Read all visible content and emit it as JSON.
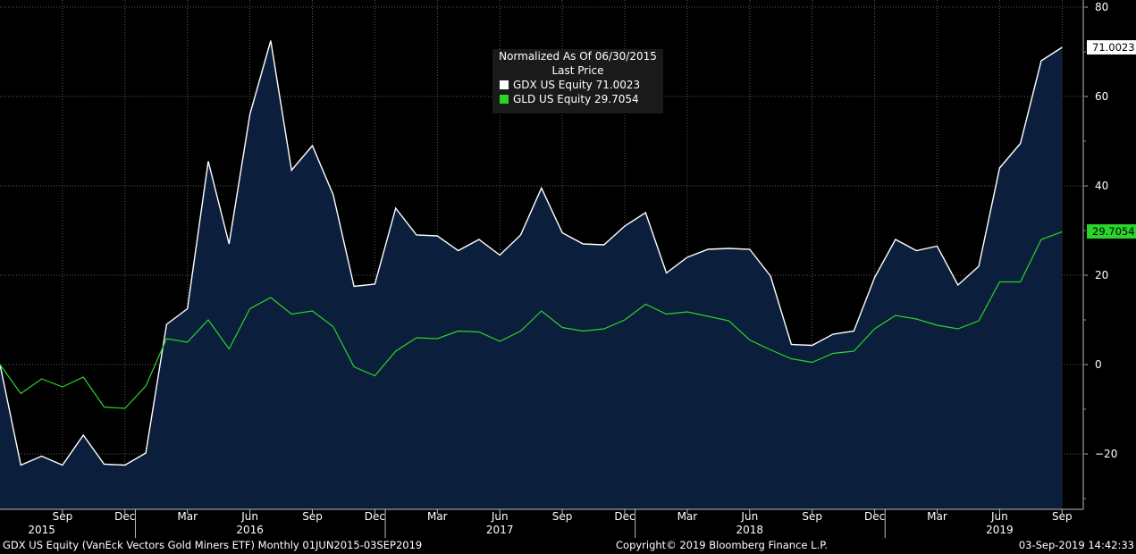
{
  "footer": {
    "left": "GDX US Equity (VanEck Vectors Gold Miners ETF)  Monthly 01JUN2015-03SEP2019",
    "center": "Copyright© 2019 Bloomberg Finance L.P.",
    "right": "03-Sep-2019 14:42:33"
  },
  "legend": {
    "title": "Normalized As Of 06/30/2015",
    "subtitle": "Last Price",
    "items": [
      {
        "label": "GDX US Equity",
        "value": "71.0023",
        "color": "#ffffff"
      },
      {
        "label": "GLD US Equity",
        "value": "29.7054",
        "color": "#2ad42a"
      }
    ]
  },
  "last_value_tags": [
    {
      "text": "71.0023",
      "color": "#ffffff"
    },
    {
      "text": "29.7054",
      "color": "#2ad42a"
    }
  ],
  "chart_data": {
    "type": "area",
    "ylim": [
      -32,
      80
    ],
    "yticks": [
      -20,
      0,
      20,
      40,
      60,
      80
    ],
    "grid": true,
    "x": [
      "2015-06",
      "2015-07",
      "2015-08",
      "2015-09",
      "2015-10",
      "2015-11",
      "2015-12",
      "2016-01",
      "2016-02",
      "2016-03",
      "2016-04",
      "2016-05",
      "2016-06",
      "2016-07",
      "2016-08",
      "2016-09",
      "2016-10",
      "2016-11",
      "2016-12",
      "2017-01",
      "2017-02",
      "2017-03",
      "2017-04",
      "2017-05",
      "2017-06",
      "2017-07",
      "2017-08",
      "2017-09",
      "2017-10",
      "2017-11",
      "2017-12",
      "2018-01",
      "2018-02",
      "2018-03",
      "2018-04",
      "2018-05",
      "2018-06",
      "2018-07",
      "2018-08",
      "2018-09",
      "2018-10",
      "2018-11",
      "2018-12",
      "2019-01",
      "2019-02",
      "2019-03",
      "2019-04",
      "2019-05",
      "2019-06",
      "2019-07",
      "2019-08",
      "2019-09"
    ],
    "month_labels": [
      {
        "month": "2015-09",
        "text": "Sep"
      },
      {
        "month": "2015-12",
        "text": "Dec"
      },
      {
        "month": "2016-03",
        "text": "Mar"
      },
      {
        "month": "2016-06",
        "text": "Jun"
      },
      {
        "month": "2016-09",
        "text": "Sep"
      },
      {
        "month": "2016-12",
        "text": "Dec"
      },
      {
        "month": "2017-03",
        "text": "Mar"
      },
      {
        "month": "2017-06",
        "text": "Jun"
      },
      {
        "month": "2017-09",
        "text": "Sep"
      },
      {
        "month": "2017-12",
        "text": "Dec"
      },
      {
        "month": "2018-03",
        "text": "Mar"
      },
      {
        "month": "2018-06",
        "text": "Jun"
      },
      {
        "month": "2018-09",
        "text": "Sep"
      },
      {
        "month": "2018-12",
        "text": "Dec"
      },
      {
        "month": "2019-03",
        "text": "Mar"
      },
      {
        "month": "2019-06",
        "text": "Jun"
      },
      {
        "month": "2019-09",
        "text": "Sep"
      }
    ],
    "year_labels": [
      {
        "month": "2015-08",
        "text": "2015"
      },
      {
        "month": "2016-06",
        "text": "2016"
      },
      {
        "month": "2017-06",
        "text": "2017"
      },
      {
        "month": "2018-06",
        "text": "2018"
      },
      {
        "month": "2019-06",
        "text": "2019"
      }
    ],
    "year_separators": [
      "2015-12",
      "2016-12",
      "2017-12",
      "2018-12"
    ],
    "series": [
      {
        "name": "GDX US Equity",
        "color": "#ffffff",
        "fill": "#0b1e3b",
        "values": [
          0,
          -22.5,
          -20.5,
          -22.5,
          -15.8,
          -22.3,
          -22.5,
          -19.8,
          9,
          12.5,
          45.5,
          27,
          56,
          72.5,
          43.5,
          49,
          38,
          17.5,
          18,
          35,
          29,
          28.8,
          25.5,
          28,
          24.5,
          29,
          39.5,
          29.5,
          27,
          26.8,
          31,
          34,
          20.5,
          24,
          25.8,
          26,
          25.8,
          19.8,
          4.5,
          4.3,
          6.8,
          7.5,
          19.5,
          28,
          25.5,
          26.5,
          17.8,
          22,
          44,
          49.5,
          68,
          71.0023
        ]
      },
      {
        "name": "GLD US Equity",
        "color": "#2ad42a",
        "values": [
          0,
          -6.5,
          -3.2,
          -5,
          -2.8,
          -9.5,
          -9.8,
          -4.8,
          5.8,
          5,
          10,
          3.5,
          12.5,
          15,
          11.3,
          12,
          8.5,
          -0.5,
          -2.5,
          3,
          6,
          5.8,
          7.5,
          7.3,
          5.2,
          7.5,
          12,
          8.3,
          7.5,
          8,
          10,
          13.5,
          11.3,
          11.8,
          10.8,
          9.8,
          5.5,
          3.3,
          1.3,
          0.5,
          2.5,
          3,
          8,
          11,
          10.2,
          8.8,
          8,
          9.8,
          18.5,
          18.5,
          28,
          29.7054
        ]
      }
    ]
  }
}
